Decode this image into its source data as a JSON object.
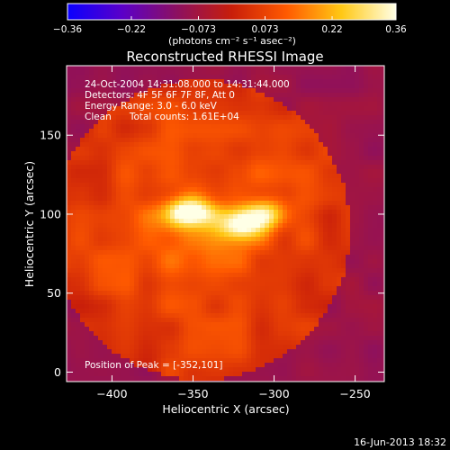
{
  "chart_data": {
    "type": "heatmap",
    "title": "Reconstructed RHESSI Image",
    "xlabel": "Heliocentric X (arcsec)",
    "ylabel": "Heliocentric Y (arcsec)",
    "xlim": [
      -428,
      -232
    ],
    "ylim": [
      -6,
      194
    ],
    "x_ticks": [
      -400,
      -350,
      -300,
      -250
    ],
    "x_tick_labels": [
      "−400",
      "−350",
      "−300",
      "−250"
    ],
    "y_ticks": [
      0,
      50,
      100,
      150
    ],
    "y_tick_labels": [
      "0",
      "50",
      "100",
      "150"
    ],
    "colorbar": {
      "ticks": [
        -0.36,
        -0.22,
        -0.073,
        0.073,
        0.22,
        0.36
      ],
      "tick_labels": [
        "−0.36",
        "−0.22",
        "−0.073",
        "0.073",
        "0.22",
        "0.36"
      ],
      "label": "(photons cm⁻² s⁻¹ asec⁻²)",
      "colors": [
        "#0a00ff",
        "#5b00c8",
        "#8c1060",
        "#c81e0a",
        "#ff5a00",
        "#ffc814",
        "#ffffe6"
      ]
    },
    "sources": [
      {
        "x": -352,
        "y": 101,
        "peak": 0.36
      },
      {
        "x": -320,
        "y": 93,
        "peak": 0.27
      },
      {
        "x": -305,
        "y": 100,
        "peak": 0.24
      }
    ],
    "annotations": [
      "24-Oct-2004 14:31:08.000 to 14:31:44.000",
      "Detectors: 4F 5F 6F 7F 8F, Att 0",
      "Energy Range: 3.0 - 6.0 keV",
      "Clean      Total counts: 1.61E+04",
      "Position of Peak = [-352,101]"
    ],
    "timestamp": "16-Jun-2013 18:32"
  }
}
